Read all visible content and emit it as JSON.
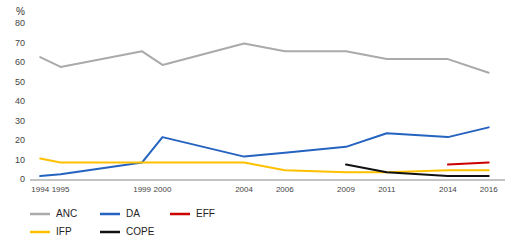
{
  "chart_data": {
    "type": "line",
    "y_label": "%",
    "x": [
      1994,
      1995,
      1999,
      2000,
      2004,
      2006,
      2009,
      2011,
      2014,
      2016
    ],
    "xlim": [
      1993.5,
      2016.8
    ],
    "xticks": [
      1994,
      1995,
      1999,
      2000,
      2004,
      2006,
      2009,
      2011,
      2014,
      2016
    ],
    "ylim": [
      0,
      80
    ],
    "yticks": [
      0,
      10,
      20,
      30,
      40,
      50,
      60,
      70,
      80
    ],
    "grid": false,
    "legend": "bottom",
    "series": [
      {
        "name": "ANC",
        "color": "#aaaaaa",
        "values": [
          63,
          58,
          66,
          59,
          70,
          66,
          66,
          62,
          62,
          55
        ]
      },
      {
        "name": "DA",
        "color": "#2563c0",
        "values": [
          2,
          3,
          9,
          22,
          12,
          14,
          17,
          24,
          22,
          27
        ]
      },
      {
        "name": "EFF",
        "color": "#cc0000",
        "values": [
          null,
          null,
          null,
          null,
          null,
          null,
          null,
          null,
          8,
          9
        ]
      },
      {
        "name": "IFP",
        "color": "#ffc000",
        "values": [
          11,
          9,
          9,
          9,
          9,
          5,
          4,
          4,
          5,
          5
        ]
      },
      {
        "name": "COPE",
        "color": "#111111",
        "values": [
          null,
          null,
          null,
          null,
          null,
          null,
          8,
          4,
          2,
          2
        ]
      }
    ]
  }
}
